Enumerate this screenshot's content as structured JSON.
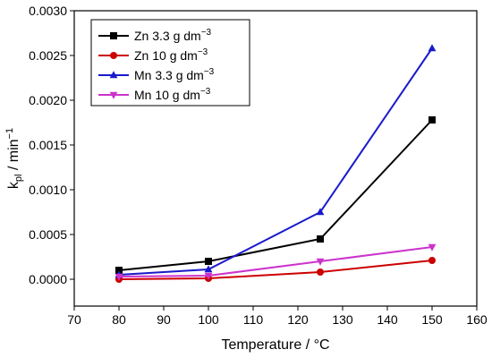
{
  "chart_data": {
    "type": "line",
    "xlabel": "Temperature / °C",
    "ylabel_main": "k",
    "ylabel_sub": "pl",
    "ylabel_tail": " / min",
    "ylabel_sup": "−1",
    "xlim": [
      70,
      160
    ],
    "ylim": [
      -0.0003,
      0.003
    ],
    "x_ticks": [
      "70",
      "80",
      "90",
      "100",
      "110",
      "120",
      "130",
      "140",
      "150",
      "160"
    ],
    "y_ticks": [
      "0.0000",
      "0.0005",
      "0.0010",
      "0.0015",
      "0.0020",
      "0.0025",
      "0.0030"
    ],
    "x_tick_values": [
      70,
      80,
      90,
      100,
      110,
      120,
      130,
      140,
      150,
      160
    ],
    "y_tick_values": [
      0,
      0.0005,
      0.001,
      0.0015,
      0.002,
      0.0025,
      0.003
    ],
    "grid": false,
    "legend_placement": "top-left",
    "series": [
      {
        "name_main": "Zn 3.3 g dm",
        "name_sup": "−3",
        "color": "#000000",
        "marker": "square",
        "x": [
          80,
          100,
          125,
          150
        ],
        "y": [
          0.0001,
          0.0002,
          0.00045,
          0.00178
        ]
      },
      {
        "name_main": "Zn 10 g dm",
        "name_sup": "−3",
        "color": "#cc0000",
        "marker": "circle",
        "x": [
          80,
          100,
          125,
          150
        ],
        "y": [
          0.0,
          1e-05,
          8e-05,
          0.00021
        ]
      },
      {
        "name_main": "Mn 3.3 g dm",
        "name_sup": "−3",
        "color": "#1a1acc",
        "marker": "triangle-up",
        "x": [
          80,
          100,
          125,
          150
        ],
        "y": [
          5e-05,
          0.00011,
          0.00075,
          0.00258
        ]
      },
      {
        "name_main": "Mn 10 g dm",
        "name_sup": "−3",
        "color": "#cc33cc",
        "marker": "triangle-down",
        "x": [
          80,
          100,
          125,
          150
        ],
        "y": [
          3e-05,
          4e-05,
          0.0002,
          0.00036
        ]
      }
    ]
  }
}
